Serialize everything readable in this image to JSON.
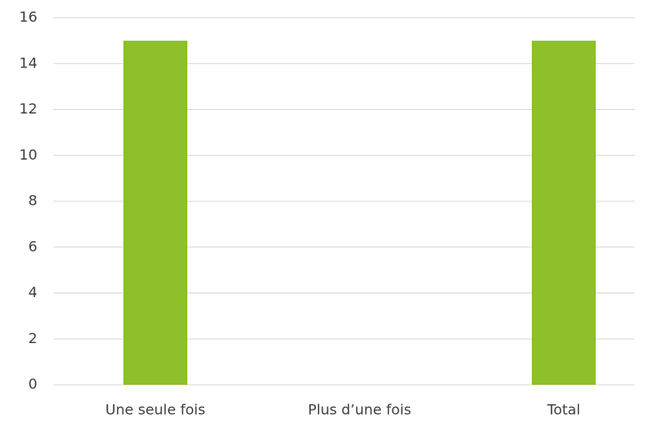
{
  "chart_data": {
    "type": "bar",
    "categories": [
      "Une seule fois",
      "Plus d’une fois",
      "Total"
    ],
    "values": [
      15,
      0,
      15
    ],
    "color": "#8dc02a",
    "ylim": [
      0,
      16
    ],
    "yticks": [
      0,
      2,
      4,
      6,
      8,
      10,
      12,
      14,
      16
    ],
    "grid": true
  }
}
